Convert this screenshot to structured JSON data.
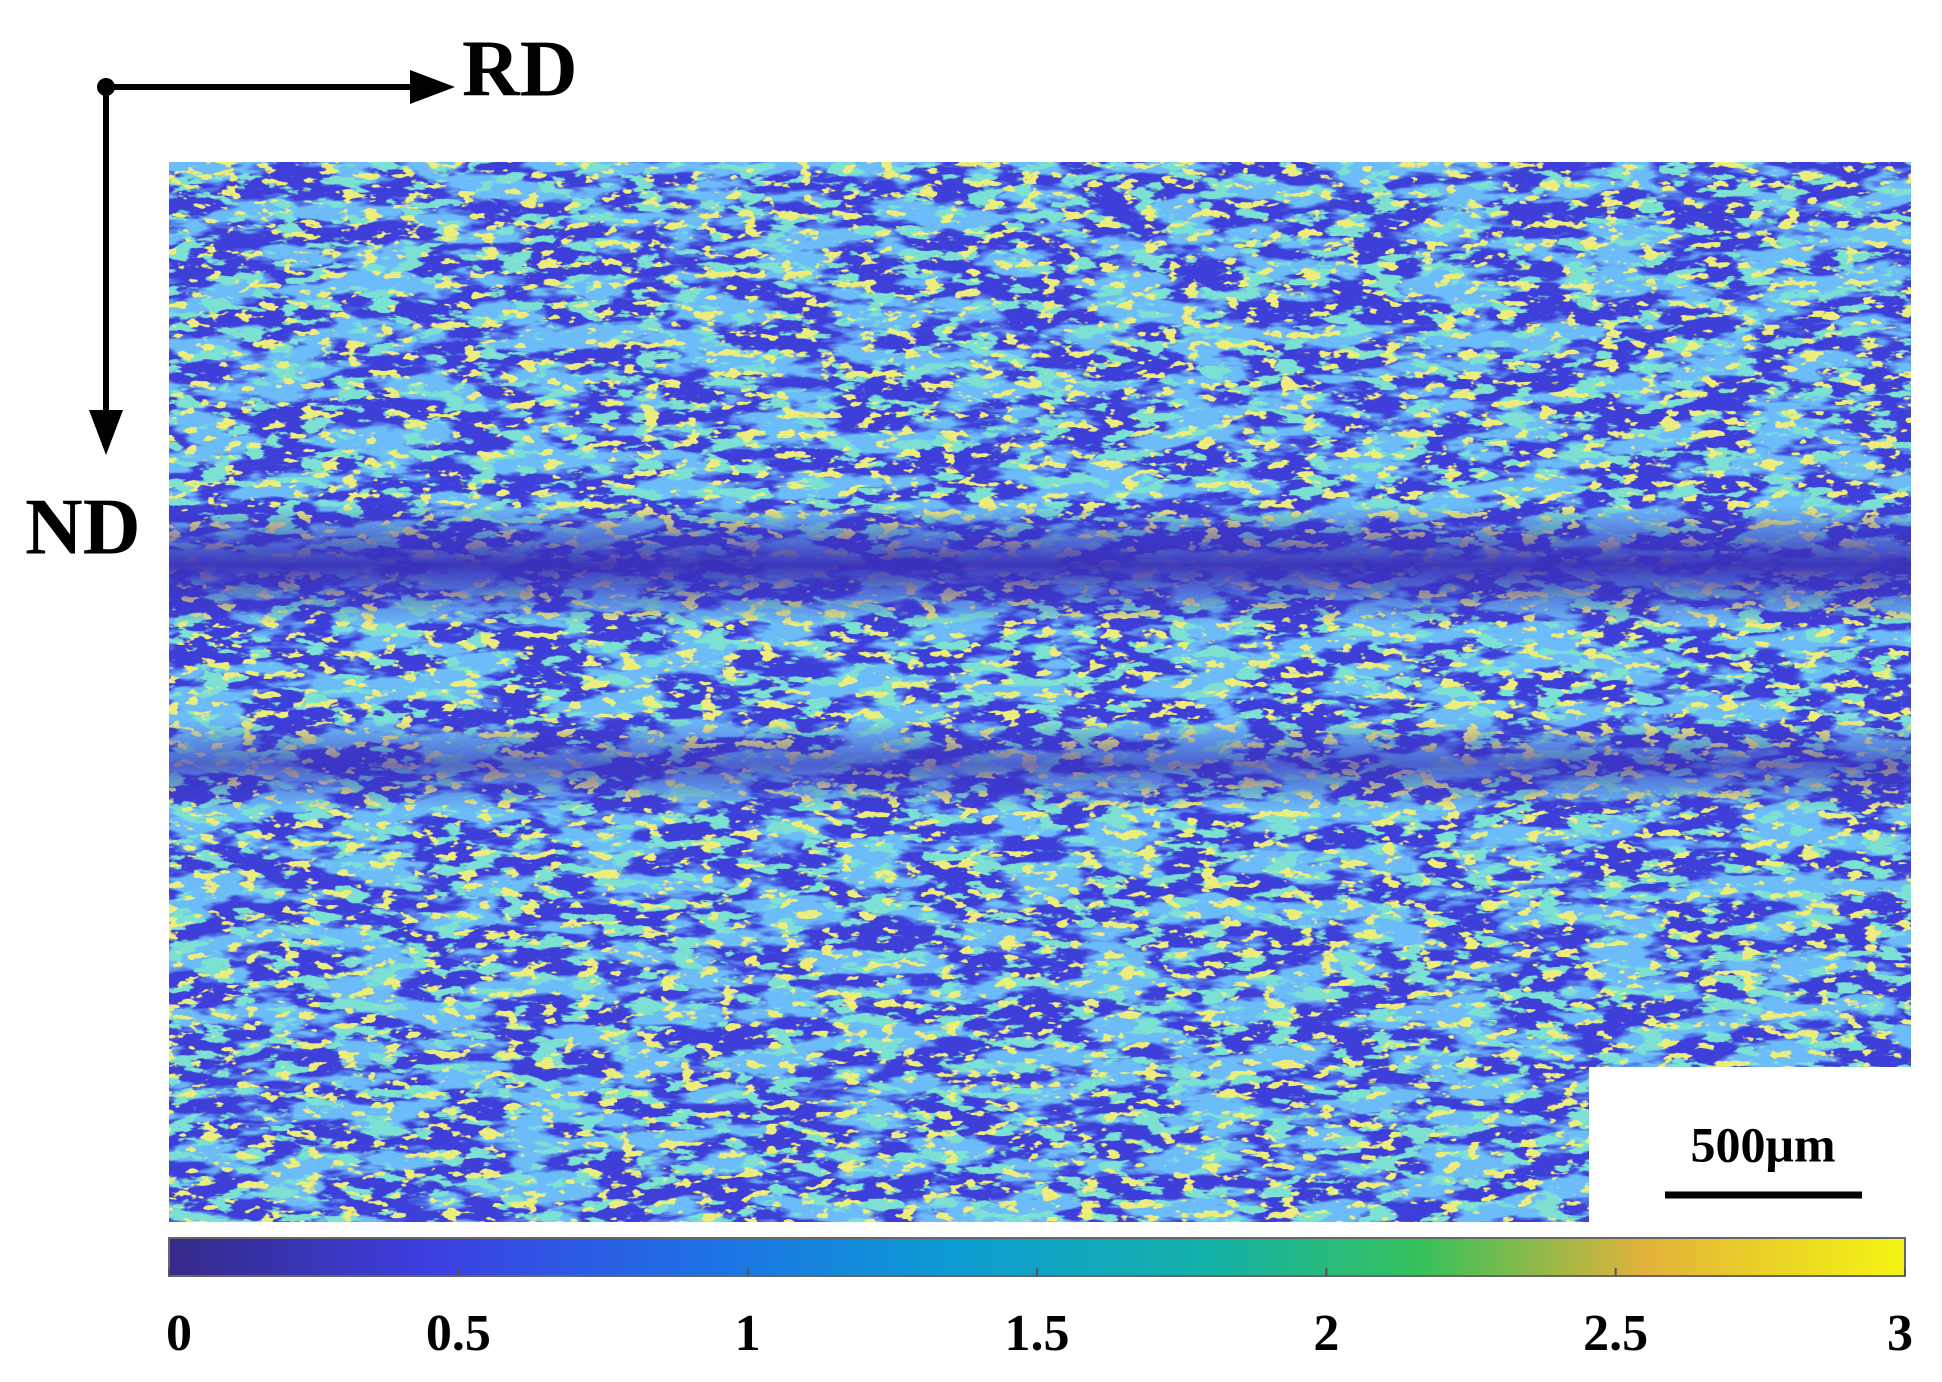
{
  "chart_data": {
    "type": "colormap",
    "x_label": "RD",
    "y_label": "ND",
    "scale_bar": "500μm",
    "clim": [
      0,
      3
    ],
    "ticks": [
      0,
      0.5,
      1,
      1.5,
      2,
      2.5,
      3
    ]
  }
}
